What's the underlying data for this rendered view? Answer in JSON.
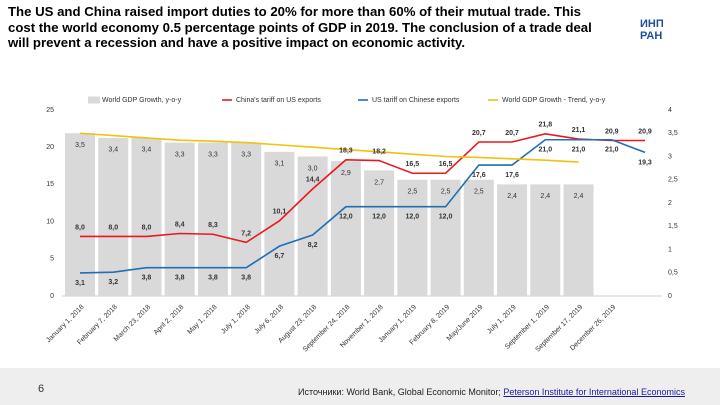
{
  "title": "The US and China raised import duties to 20% for more than 60% of their mutual trade. This cost the world economy 0.5 percentage points of GDP in 2019. The conclusion of a trade deal will prevent a recession and have a positive impact on economic activity.",
  "logo_text": "ИНП РАН",
  "page_number": "6",
  "source": "Источники: World Bank, Global Economic Monitor; ",
  "source_link": "Peterson Institute for International Economics",
  "chart_data": {
    "type": "bar_line",
    "categories": [
      "January 1, 2018",
      "February 7, 2018",
      "March 23, 2018",
      "April 2, 2018",
      "May 1, 2018",
      "July 1, 2018",
      "July 6, 2018",
      "August 23, 2018",
      "September 24, 2018",
      "November 1, 2018",
      "January 1, 2019",
      "February 8, 2019",
      "May/June 2019",
      "July 1, 2019",
      "September 1, 2019",
      "September 17, 2019",
      "December 26, 2019",
      null
    ],
    "series": [
      {
        "name": "World GDP Growth, y-o-y",
        "kind": "bar",
        "axis": "y2",
        "color": "#d9d9d9",
        "values": [
          3.5,
          3.4,
          3.4,
          3.3,
          3.3,
          3.3,
          3.1,
          3.0,
          2.9,
          2.7,
          2.5,
          2.5,
          2.5,
          2.4,
          2.4,
          2.4,
          null,
          null
        ],
        "value_labels": [
          "3,5",
          "3,4",
          "3,4",
          "3,3",
          "3,3",
          "3,3",
          "3,1",
          "3,0",
          "2,9",
          "2,7",
          "2,5",
          "2,5",
          "2,5",
          "2,4",
          "2,4",
          "2,4",
          null,
          null
        ]
      },
      {
        "name": "China's tariff on US exports",
        "kind": "line",
        "color": "#e8191e",
        "values": [
          8.0,
          8.0,
          8.0,
          8.4,
          8.3,
          7.2,
          10.1,
          14.4,
          18.3,
          18.2,
          16.5,
          16.5,
          20.7,
          20.7,
          21.8,
          21.1,
          20.9,
          20.9
        ],
        "value_labels": [
          "8,0",
          "8,0",
          "8,0",
          "8,4",
          "8,3",
          "7,2",
          "10,1",
          "14,4",
          "18,3",
          "18,2",
          "16,5",
          "16,5",
          "20,7",
          "20,7",
          "21,8",
          "21,1",
          "20,9",
          "20,9"
        ]
      },
      {
        "name": "US tariff on Chinese exports",
        "kind": "line",
        "color": "#1f6fb5",
        "values": [
          3.1,
          3.2,
          3.8,
          3.8,
          3.8,
          3.8,
          6.7,
          8.2,
          12.0,
          12.0,
          12.0,
          12.0,
          17.6,
          17.6,
          21.0,
          21.0,
          21.0,
          19.3
        ],
        "value_labels": [
          "3,1",
          "3,2",
          "3,8",
          "3,8",
          "3,8",
          "3,8",
          "6,7",
          "8,2",
          "12,0",
          "12,0",
          "12,0",
          "12,0",
          "17,6",
          "17,6",
          "21,0",
          "21,0",
          "21,0",
          "19,3"
        ]
      },
      {
        "name": "World GDP Growth - Trend, y-o-y",
        "kind": "line",
        "axis": "y2",
        "color": "#f2c00f",
        "values": [
          3.5,
          3.45,
          3.4,
          3.35,
          3.33,
          3.3,
          3.25,
          3.2,
          3.15,
          3.1,
          3.05,
          3.0,
          2.98,
          2.95,
          2.92,
          2.88,
          null,
          null
        ]
      }
    ],
    "ylim": [
      0,
      25
    ],
    "yticks": [
      0,
      5,
      10,
      15,
      20,
      25
    ],
    "y2lim": [
      0,
      4
    ],
    "y2ticks": [
      0,
      {
        "value": 0.5,
        "label": "0,5"
      },
      1,
      {
        "value": 1.5,
        "label": "1,5"
      },
      2,
      {
        "value": 2.5,
        "label": "2,5"
      },
      3,
      {
        "value": 3.5,
        "label": "3,5"
      },
      4
    ]
  }
}
